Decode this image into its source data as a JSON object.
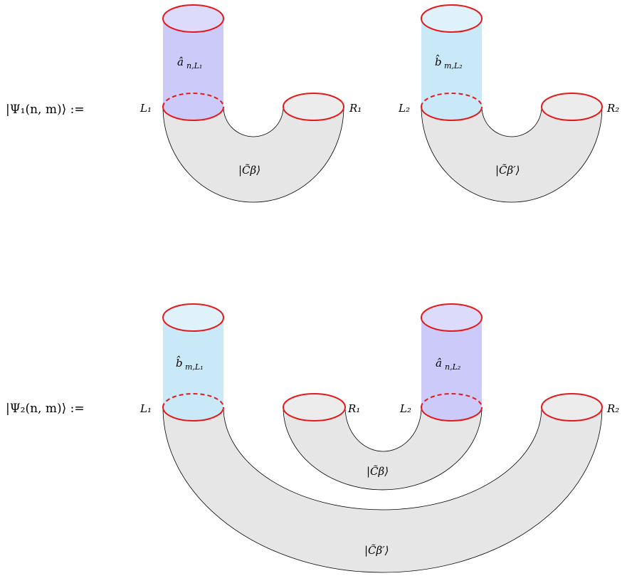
{
  "diagram": {
    "psi1": {
      "label": "|Ψ₁(n, m)⟩ :=",
      "left_block": {
        "cylinder_op": "â",
        "cylinder_sub": "n,L₁",
        "left_label": "L₁",
        "right_label": "R₁",
        "state_label": "|C̃β⟩",
        "cylinder_color": "#cccaf9"
      },
      "right_block": {
        "cylinder_op": "b̂",
        "cylinder_sub": "m,L₂",
        "left_label": "L₂",
        "right_label": "R₂",
        "state_label": "|C̃β′⟩",
        "cylinder_color": "#c9e8f8"
      }
    },
    "psi2": {
      "label": "|Ψ₂(n, m)⟩ :=",
      "left_cylinder_op": "b̂",
      "left_cylinder_sub": "m,L₁",
      "right_cylinder_op": "â",
      "right_cylinder_sub": "n,L₂",
      "L1": "L₁",
      "R1": "R₁",
      "L2": "L₂",
      "R2": "R₂",
      "inner_state": "|C̃β⟩",
      "outer_state": "|C̃β′⟩",
      "left_cylinder_color": "#c9e8f8",
      "right_cylinder_color": "#cccaf9"
    },
    "colors": {
      "rim": "#e31a1c",
      "tube": "#e6e6e6"
    }
  }
}
